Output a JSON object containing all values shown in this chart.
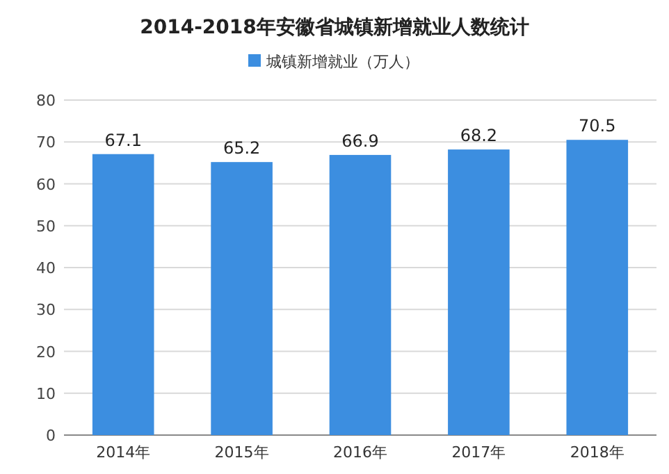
{
  "chart_data": {
    "type": "bar",
    "title": "2014-2018年安徽省城镇新增就业人数统计",
    "categories": [
      "2014年",
      "2015年",
      "2016年",
      "2017年",
      "2018年"
    ],
    "series": [
      {
        "name": "城镇新增就业（万人）",
        "color": "#3c8ee0",
        "values": [
          67.1,
          65.2,
          66.9,
          68.2,
          70.5
        ]
      }
    ],
    "ylim": [
      0,
      80
    ],
    "yticks": [
      0,
      10,
      20,
      30,
      40,
      50,
      60,
      70,
      80
    ],
    "grid": "y",
    "legend": "top",
    "data_labels": true
  }
}
